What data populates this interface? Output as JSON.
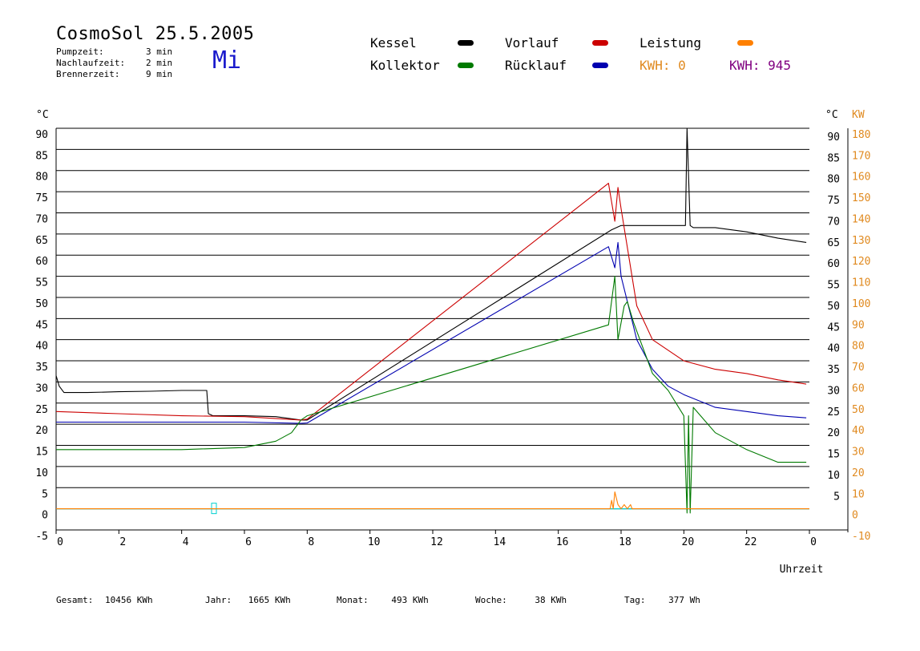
{
  "header": {
    "title": "CosmoSol 25.5.2005",
    "day": "Mi",
    "info": [
      {
        "label": "Pumpzeit:",
        "value": "3 min"
      },
      {
        "label": "Nachlaufzeit:",
        "value": "2 min"
      },
      {
        "label": "Brennerzeit:",
        "value": "9 min"
      }
    ]
  },
  "legend": {
    "kessel": "Kessel",
    "kollektor": "Kollektor",
    "vorlauf": "Vorlauf",
    "ruecklauf": "Rücklauf",
    "leistung": "Leistung",
    "kwh_orange": "KWH: 0",
    "kwh_purple": "KWH: 945"
  },
  "footer": {
    "gesamt_label": "Gesamt:",
    "gesamt_value": "10456 KWh",
    "jahr_label": "Jahr:",
    "jahr_value": "1665 KWh",
    "monat_label": "Monat:",
    "monat_value": "493 KWh",
    "woche_label": "Woche:",
    "woche_value": "38 KWh",
    "tag_label": "Tag:",
    "tag_value": "377 Wh"
  },
  "chart_data": {
    "type": "line",
    "xlabel": "Uhrzeit",
    "ylabel_left": "°C",
    "ylabel_right_temp": "°C",
    "ylabel_right_power": "KW",
    "xlim": [
      0,
      24
    ],
    "ylim": [
      -5,
      90
    ],
    "y2lim": [
      -10,
      180
    ],
    "x_ticks": [
      "0",
      "2",
      "4",
      "6",
      "8",
      "10",
      "12",
      "14",
      "16",
      "18",
      "20",
      "22",
      "0"
    ],
    "y_ticks_left": [
      "90",
      "85",
      "80",
      "75",
      "70",
      "65",
      "60",
      "55",
      "50",
      "45",
      "40",
      "35",
      "30",
      "25",
      "20",
      "15",
      "10",
      "5",
      "0",
      "-5"
    ],
    "y_ticks_right_temp": [
      "90",
      "85",
      "80",
      "75",
      "70",
      "65",
      "60",
      "55",
      "50",
      "45",
      "40",
      "35",
      "30",
      "25",
      "20",
      "15",
      "10",
      "5"
    ],
    "y_ticks_right_power": [
      "180",
      "170",
      "160",
      "150",
      "140",
      "130",
      "120",
      "110",
      "100",
      "90",
      "80",
      "70",
      "60",
      "50",
      "40",
      "30",
      "20",
      "10",
      "0",
      "-10"
    ],
    "grid": true,
    "colors": {
      "kessel": "#000000",
      "kollektor": "#007a00",
      "vorlauf": "#cc0000",
      "ruecklauf": "#0000b0",
      "leistung": "#ff8000",
      "baseline": "#00d0d0",
      "kwh_purple": "#800080"
    },
    "series": [
      {
        "name": "Kessel",
        "key": "kessel",
        "x": [
          0,
          0.1,
          0.25,
          1,
          2,
          3,
          4,
          4.8,
          4.85,
          5,
          6,
          7,
          7.8,
          8,
          17.7,
          18,
          19,
          20,
          20.05,
          20.1,
          20.2,
          20.3,
          21,
          22,
          23,
          23.9
        ],
        "y": [
          31.5,
          29,
          27.5,
          27.5,
          27.7,
          27.8,
          28,
          28,
          22.5,
          22,
          22,
          21.8,
          21,
          21,
          66,
          67,
          67,
          67,
          67,
          90,
          67,
          66.5,
          66.5,
          65.5,
          64,
          63
        ]
      },
      {
        "name": "Vorlauf",
        "key": "vorlauf",
        "x": [
          0,
          2,
          4,
          6,
          7.8,
          8,
          17.6,
          17.8,
          17.9,
          18,
          18.5,
          19,
          20,
          21,
          22,
          23,
          23.9
        ],
        "y": [
          23,
          22.5,
          22,
          21.8,
          21,
          21.2,
          77,
          68,
          76,
          71,
          48,
          40,
          35,
          33,
          32,
          30.5,
          29.5
        ]
      },
      {
        "name": "Rücklauf",
        "key": "ruecklauf",
        "x": [
          0,
          2,
          4,
          6,
          7.8,
          8,
          17.6,
          17.8,
          17.9,
          18,
          18.5,
          19,
          19.5,
          20,
          21,
          22,
          23,
          23.9
        ],
        "y": [
          20.5,
          20.5,
          20.5,
          20.5,
          20.2,
          20.3,
          62,
          57,
          63,
          55,
          40,
          33,
          29,
          27,
          24,
          23,
          22,
          21.5
        ]
      },
      {
        "name": "Kollektor",
        "key": "kollektor",
        "x": [
          0,
          2,
          4,
          6,
          7,
          7.5,
          7.8,
          8,
          17.6,
          17.8,
          17.9,
          18,
          18.1,
          18.2,
          18.4,
          18.6,
          19,
          19.5,
          20,
          20.1,
          20.15,
          20.2,
          20.3,
          21,
          22,
          23,
          23.9
        ],
        "y": [
          14,
          14,
          14,
          14.5,
          16,
          18,
          21,
          22,
          43.5,
          55,
          40,
          44,
          48,
          49,
          44,
          40,
          32,
          28,
          22,
          -1,
          22,
          -1,
          24,
          18,
          14,
          11,
          11
        ]
      },
      {
        "name": "Leistung",
        "key": "leistung",
        "x": [
          0,
          17.65,
          17.7,
          17.75,
          17.8,
          17.9,
          18,
          18.1,
          18.2,
          18.3,
          18.35,
          24
        ],
        "y": [
          0,
          0,
          2,
          0,
          4,
          1,
          0,
          1,
          0,
          1,
          0,
          0
        ]
      }
    ],
    "annotations": [
      "Mi"
    ]
  }
}
